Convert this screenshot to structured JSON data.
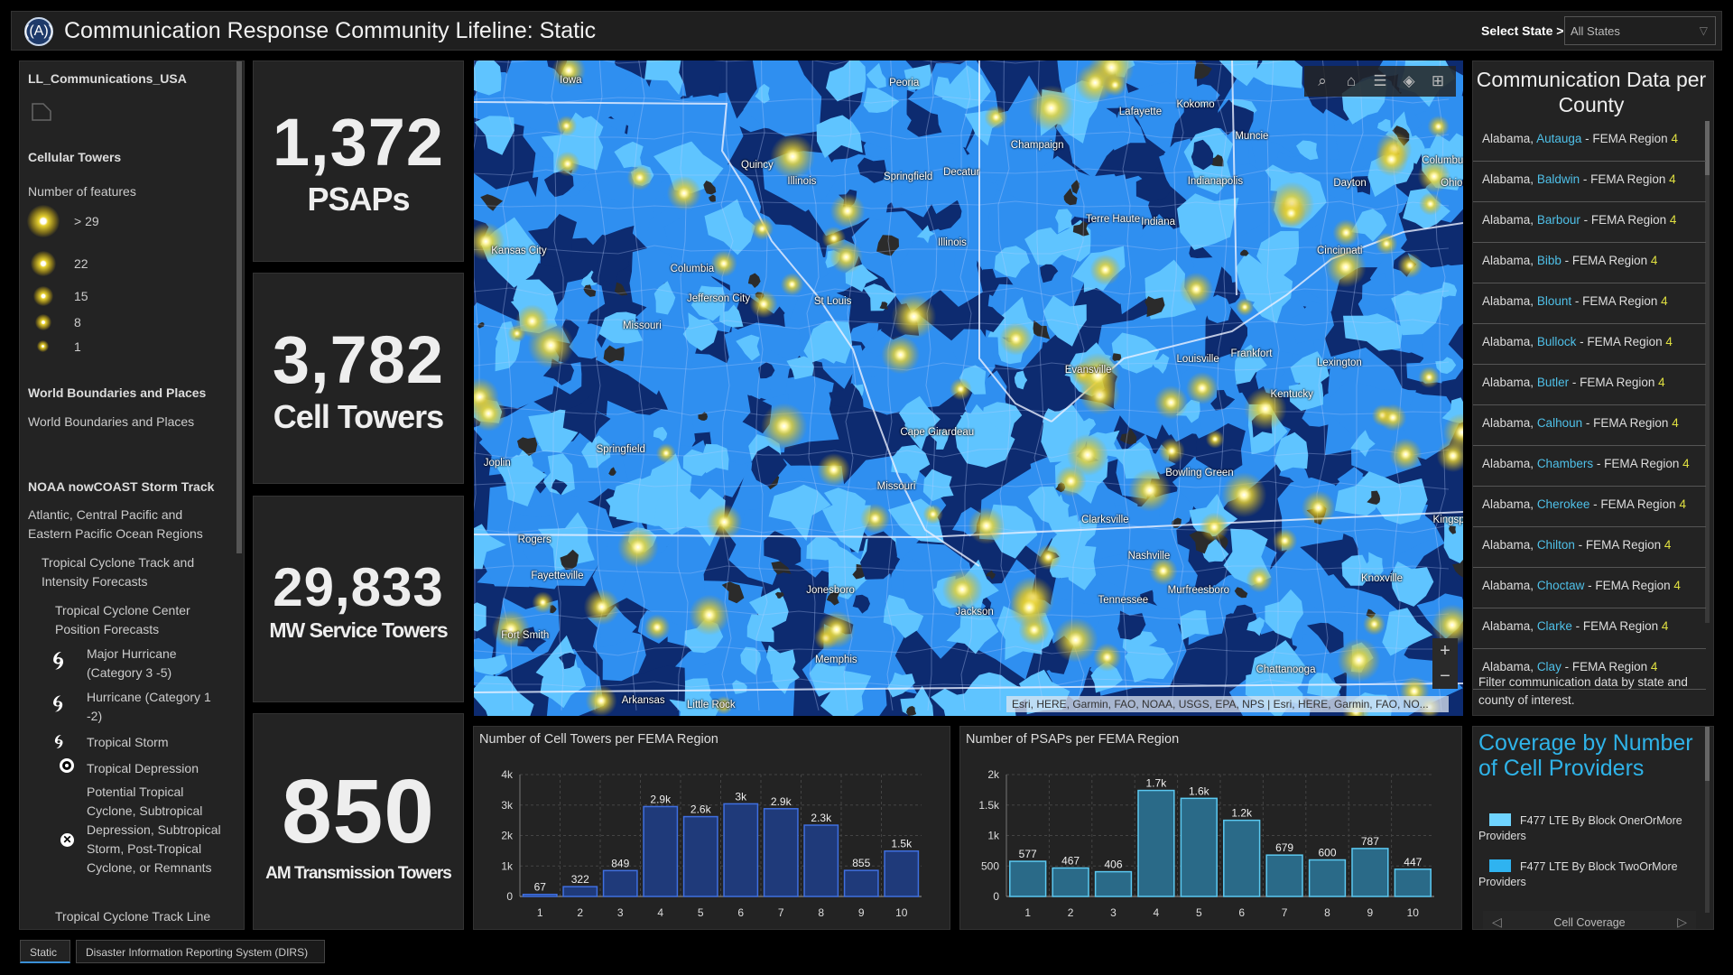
{
  "header": {
    "title": "Communication Response Community Lifeline: Static",
    "select_label": "Select State >",
    "select_value": "All States"
  },
  "legend": {
    "layer": "LL_Communications_USA",
    "cell_towers_title": "Cellular Towers",
    "cell_towers_subtitle": "Number of features",
    "feature_classes": [
      "> 29",
      "22",
      "15",
      "8",
      "1"
    ],
    "world_title": "World Boundaries and Places",
    "world_item": "World Boundaries and Places",
    "noaa_title": "NOAA nowCOAST Storm Track",
    "noaa_region": "Atlantic, Central Pacific and Eastern Pacific Ocean Regions",
    "track_forecasts": "Tropical Cyclone Track and Intensity Forecasts",
    "center_forecasts": "Tropical Cyclone Center Position Forecasts",
    "storm_types": [
      {
        "label": "Major Hurricane (Category 3 -5)",
        "icon": "major-hurricane-icon"
      },
      {
        "label": "Hurricane (Category 1 -2)",
        "icon": "hurricane-icon"
      },
      {
        "label": "Tropical Storm",
        "icon": "tropical-storm-icon"
      },
      {
        "label": "Tropical Depression",
        "icon": "tropical-depression-icon"
      },
      {
        "label": "Potential Tropical Cyclone, Subtropical Depression, Subtropical Storm, Post-Tropical Cyclone, or Remnants",
        "icon": "potential-cyclone-icon"
      }
    ],
    "track_line": "Tropical Cyclone Track Line"
  },
  "kpis": [
    {
      "value": "1,372",
      "label": "PSAPs"
    },
    {
      "value": "3,782",
      "label": "Cell Towers"
    },
    {
      "value": "29,833",
      "label": "MW Service Towers"
    },
    {
      "value": "850",
      "label": "AM Transmission Towers"
    }
  ],
  "map": {
    "tools": [
      "search-icon",
      "home-icon",
      "legend-icon",
      "layers-icon",
      "basemap-gallery-icon"
    ],
    "zoom_in": "+",
    "zoom_out": "−",
    "attribution": "Esri, HERE, Garmin, FAO, NOAA, USGS, EPA, NPS | Esri, HERE, Garmin, FAO, NO...",
    "colors": {
      "base": "#0d2b70",
      "one_or_more": "#5fc4ff",
      "two_or_more": "#2f8ff0",
      "tower_glow": "#e8d230"
    },
    "labels": [
      "Iowa",
      "Peoria",
      "Lafayette",
      "Kokomo",
      "Muncie",
      "Champaign",
      "Quincy",
      "Illinois",
      "Springfield",
      "Decatur",
      "Indianapolis",
      "Dayton",
      "Columbus",
      "Ohio",
      "Terre Haute",
      "Indiana",
      "Illinois",
      "Cincinnati",
      "Kansas City",
      "Columbia",
      "Jefferson City",
      "St Louis",
      "Missouri",
      "Frankfort",
      "Louisville",
      "Lexington",
      "Evansville",
      "Kentucky",
      "Cape Girardeau",
      "Missouri",
      "Springfield",
      "Joplin",
      "Bowling Green",
      "Clarksville",
      "Kingsport",
      "Rogers",
      "Nashville",
      "Knoxville",
      "Fayetteville",
      "Jonesboro",
      "Murfreesboro",
      "Tennessee",
      "Jackson",
      "Fort Smith",
      "Memphis",
      "Chattanooga",
      "Arkansas",
      "Little Rock"
    ]
  },
  "county_panel": {
    "title": "Communication Data per County",
    "items": [
      {
        "state": "Alabama,",
        "county": "Autauga",
        "suffix": "- FEMA Region",
        "region": "4"
      },
      {
        "state": "Alabama,",
        "county": "Baldwin",
        "suffix": "- FEMA Region",
        "region": "4"
      },
      {
        "state": "Alabama,",
        "county": "Barbour",
        "suffix": "- FEMA Region",
        "region": "4"
      },
      {
        "state": "Alabama,",
        "county": "Bibb",
        "suffix": "- FEMA Region",
        "region": "4"
      },
      {
        "state": "Alabama,",
        "county": "Blount",
        "suffix": "- FEMA Region",
        "region": "4"
      },
      {
        "state": "Alabama,",
        "county": "Bullock",
        "suffix": "- FEMA Region",
        "region": "4"
      },
      {
        "state": "Alabama,",
        "county": "Butler",
        "suffix": "- FEMA Region",
        "region": "4"
      },
      {
        "state": "Alabama,",
        "county": "Calhoun",
        "suffix": "- FEMA Region",
        "region": "4"
      },
      {
        "state": "Alabama,",
        "county": "Chambers",
        "suffix": "- FEMA Region",
        "region": "4"
      },
      {
        "state": "Alabama,",
        "county": "Cherokee",
        "suffix": "- FEMA Region",
        "region": "4"
      },
      {
        "state": "Alabama,",
        "county": "Chilton",
        "suffix": "- FEMA Region",
        "region": "4"
      },
      {
        "state": "Alabama,",
        "county": "Choctaw",
        "suffix": "- FEMA Region",
        "region": "4"
      },
      {
        "state": "Alabama,",
        "county": "Clarke",
        "suffix": "- FEMA Region",
        "region": "4"
      },
      {
        "state": "Alabama,",
        "county": "Clay",
        "suffix": "- FEMA Region",
        "region": "4"
      }
    ],
    "footer": "Filter communication data by state and county of interest."
  },
  "chart_data": [
    {
      "type": "bar",
      "title": "Number of Cell Towers per FEMA Region",
      "xlabel": "",
      "ylabel": "",
      "categories": [
        "1",
        "2",
        "3",
        "4",
        "5",
        "6",
        "7",
        "8",
        "9",
        "10"
      ],
      "values": [
        67,
        322,
        849,
        2950,
        2620,
        3040,
        2880,
        2340,
        855,
        1490
      ],
      "data_labels": [
        "67",
        "322",
        "849",
        "2.9k",
        "2.6k",
        "3k",
        "2.9k",
        "2.3k",
        "855",
        "1.5k"
      ],
      "ylim": [
        0,
        4000
      ],
      "yticks": [
        "0",
        "1k",
        "2k",
        "3k",
        "4k"
      ],
      "grid": true,
      "color": "#1f3a7a",
      "edge": "#3f6fe0"
    },
    {
      "type": "bar",
      "title": "Number of PSAPs per FEMA Region",
      "xlabel": "",
      "ylabel": "",
      "categories": [
        "1",
        "2",
        "3",
        "4",
        "5",
        "6",
        "7",
        "8",
        "9",
        "10"
      ],
      "values": [
        577,
        467,
        406,
        1740,
        1610,
        1250,
        679,
        600,
        787,
        447
      ],
      "data_labels": [
        "577",
        "467",
        "406",
        "1.7k",
        "1.6k",
        "1.2k",
        "679",
        "600",
        "787",
        "447"
      ],
      "ylim": [
        0,
        2000
      ],
      "yticks": [
        "0",
        "500",
        "1k",
        "1.5k",
        "2k"
      ],
      "grid": true,
      "color": "#2a6a88",
      "edge": "#5bc8f0"
    }
  ],
  "coverage": {
    "title": "Coverage by Number of Cell Providers",
    "items": [
      {
        "label": "F477 LTE By Block OnerOrMore Providers",
        "color": "#6fd4ff"
      },
      {
        "label": "F477 LTE By Block TwoOrMore Providers",
        "color": "#2fb3f0"
      }
    ],
    "nav_label": "Cell Coverage"
  },
  "tabs": [
    {
      "label": "Static",
      "active": true
    },
    {
      "label": "Disaster Information Reporting System (DIRS)",
      "active": false
    }
  ]
}
